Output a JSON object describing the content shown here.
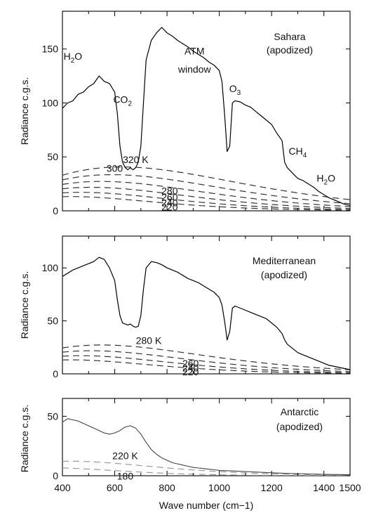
{
  "chart_data": [
    {
      "type": "line",
      "panel": "sahara",
      "title_lines": [
        "Sahara",
        "(apodized)"
      ],
      "ylabel": "Radiance c.g.s.",
      "xlim": [
        400,
        1500
      ],
      "ylim": [
        0,
        185
      ],
      "yticks": [
        0,
        50,
        100,
        150
      ],
      "blackbody_curves": [
        {
          "label": "320 K",
          "T": 320
        },
        {
          "label": "300",
          "T": 300
        },
        {
          "label": "280",
          "T": 280
        },
        {
          "label": "260",
          "T": 260
        },
        {
          "label": "240",
          "T": 240
        },
        {
          "label": "220",
          "T": 220
        }
      ],
      "annotations": [
        {
          "base": "H",
          "sub": "2",
          "tail": "O",
          "x": 440,
          "y": 140
        },
        {
          "base": "CO",
          "sub": "2",
          "tail": "",
          "x": 630,
          "y": 100
        },
        {
          "text": "ATM",
          "x": 905,
          "y": 145
        },
        {
          "text": "window",
          "x": 905,
          "y": 128
        },
        {
          "base": "O",
          "sub": "3",
          "tail": "",
          "x": 1060,
          "y": 110
        },
        {
          "base": "CH",
          "sub": "4",
          "tail": "",
          "x": 1300,
          "y": 52
        },
        {
          "base": "H",
          "sub": "2",
          "tail": "O",
          "x": 1408,
          "y": 27
        }
      ],
      "series": [
        {
          "name": "",
          "x": [
            400,
            420,
            440,
            460,
            480,
            500,
            520,
            540,
            560,
            580,
            600,
            610,
            620,
            630,
            640,
            650,
            660,
            670,
            680,
            690,
            700,
            710,
            720,
            740,
            760,
            780,
            800,
            820,
            840,
            860,
            880,
            900,
            920,
            940,
            960,
            980,
            1000,
            1010,
            1020,
            1030,
            1040,
            1050,
            1060,
            1080,
            1100,
            1120,
            1140,
            1160,
            1180,
            1200,
            1220,
            1240,
            1250,
            1260,
            1280,
            1300,
            1320,
            1340,
            1360,
            1380,
            1400,
            1420,
            1440,
            1460,
            1480,
            1500
          ],
          "y": [
            95,
            100,
            102,
            108,
            110,
            115,
            118,
            125,
            120,
            118,
            110,
            90,
            60,
            45,
            40,
            38,
            40,
            38,
            40,
            45,
            60,
            100,
            140,
            158,
            165,
            170,
            165,
            162,
            158,
            155,
            152,
            148,
            145,
            142,
            138,
            135,
            130,
            120,
            90,
            55,
            60,
            100,
            102,
            101,
            98,
            96,
            92,
            88,
            84,
            80,
            72,
            65,
            45,
            40,
            35,
            30,
            28,
            25,
            22,
            18,
            15,
            12,
            10,
            8,
            6,
            5
          ]
        }
      ]
    },
    {
      "type": "line",
      "panel": "mediterranean",
      "title_lines": [
        "Mediterranean",
        "(apodized)"
      ],
      "ylabel": "Radiance c.g.s.",
      "xlim": [
        400,
        1500
      ],
      "ylim": [
        0,
        130
      ],
      "yticks": [
        0,
        50,
        100
      ],
      "blackbody_curves": [
        {
          "label": "280 K",
          "T": 280
        },
        {
          "label": "260",
          "T": 260
        },
        {
          "label": "240",
          "T": 240
        },
        {
          "label": "220",
          "T": 220
        }
      ],
      "annotations": [],
      "series": [
        {
          "name": "",
          "x": [
            400,
            420,
            440,
            460,
            480,
            500,
            520,
            540,
            560,
            580,
            600,
            610,
            620,
            630,
            640,
            650,
            660,
            670,
            680,
            690,
            700,
            710,
            720,
            740,
            760,
            780,
            800,
            820,
            840,
            860,
            880,
            900,
            920,
            940,
            960,
            980,
            1000,
            1010,
            1020,
            1030,
            1040,
            1050,
            1060,
            1080,
            1100,
            1120,
            1140,
            1160,
            1180,
            1200,
            1220,
            1240,
            1250,
            1260,
            1280,
            1300,
            1320,
            1340,
            1360,
            1380,
            1400,
            1420,
            1440,
            1460,
            1480,
            1500
          ],
          "y": [
            92,
            95,
            98,
            100,
            102,
            104,
            106,
            110,
            108,
            100,
            88,
            70,
            55,
            48,
            47,
            46,
            47,
            45,
            44,
            45,
            55,
            80,
            100,
            106,
            105,
            103,
            100,
            98,
            96,
            93,
            90,
            88,
            86,
            83,
            80,
            77,
            72,
            65,
            50,
            32,
            40,
            62,
            64,
            62,
            60,
            58,
            56,
            54,
            52,
            48,
            44,
            38,
            32,
            28,
            24,
            20,
            18,
            16,
            14,
            12,
            10,
            8,
            7,
            6,
            5,
            4
          ]
        }
      ]
    },
    {
      "type": "line",
      "panel": "antarctic",
      "title_lines": [
        "Antarctic",
        "(apodized)"
      ],
      "ylabel": "Radiance c.g.s.",
      "xlabel": "Wave number (cm−1)",
      "xlim": [
        400,
        1500
      ],
      "ylim": [
        0,
        65
      ],
      "yticks": [
        0,
        50
      ],
      "xticks": [
        400,
        600,
        800,
        1000,
        1200,
        1400,
        1500
      ],
      "blackbody_curves": [
        {
          "label": "220 K",
          "T": 220
        },
        {
          "label": "180",
          "T": 180
        }
      ],
      "annotations": [],
      "series": [
        {
          "name": "",
          "x": [
            400,
            420,
            440,
            460,
            480,
            500,
            520,
            540,
            560,
            580,
            600,
            620,
            640,
            660,
            680,
            700,
            720,
            740,
            760,
            780,
            800,
            820,
            840,
            860,
            880,
            900,
            920,
            940,
            960,
            980,
            1000,
            1050,
            1100,
            1150,
            1200,
            1250,
            1300,
            1350,
            1400,
            1450,
            1500
          ],
          "y": [
            45,
            48,
            47,
            46,
            44,
            42,
            40,
            38,
            36,
            35,
            36,
            38,
            41,
            42,
            40,
            35,
            28,
            22,
            18,
            15,
            13,
            11,
            10,
            9,
            8,
            7,
            6.5,
            6,
            5.5,
            5,
            4.5,
            4,
            3.5,
            3,
            2.5,
            2,
            1.8,
            1.5,
            1.2,
            1,
            0.8
          ]
        }
      ]
    }
  ]
}
